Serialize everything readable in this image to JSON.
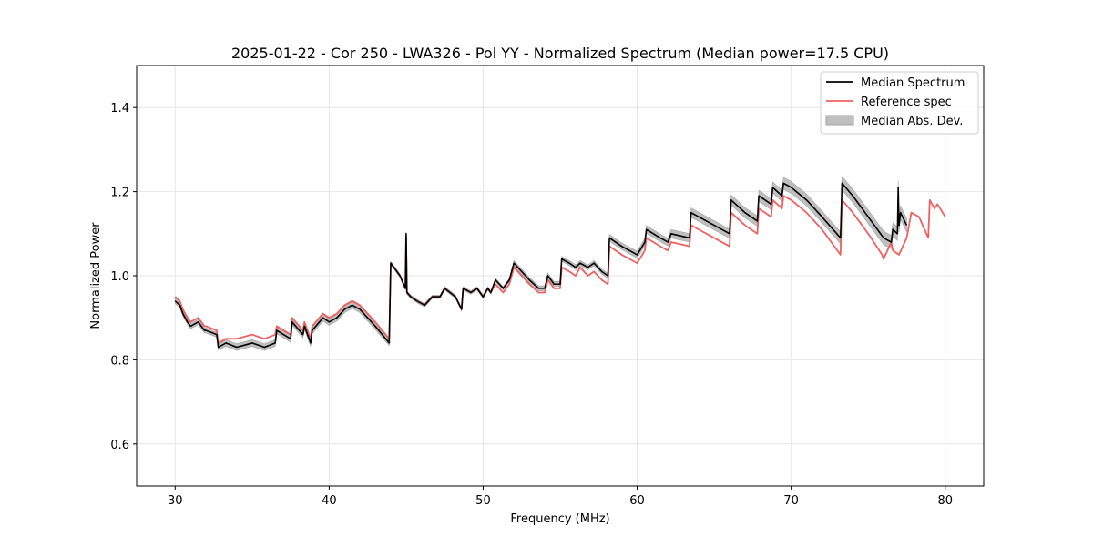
{
  "chart_data": {
    "type": "line",
    "title": "2025-01-22 - Cor 250 - LWA326 - Pol YY - Normalized Spectrum (Median power=17.5 CPU)",
    "xlabel": "Frequency (MHz)",
    "ylabel": "Normalized Power",
    "xlim": [
      27.5,
      82.5
    ],
    "ylim": [
      0.5,
      1.5
    ],
    "xticks": [
      30,
      40,
      50,
      60,
      70,
      80
    ],
    "yticks": [
      0.6,
      0.8,
      1.0,
      1.2,
      1.4
    ],
    "xtick_labels": [
      "30",
      "40",
      "50",
      "60",
      "70",
      "80"
    ],
    "ytick_labels": [
      "0.6",
      "0.8",
      "1.0",
      "1.2",
      "1.4"
    ],
    "grid": true,
    "legend_position": "top-right",
    "colors": {
      "median": "#000000",
      "reference": "#f06060",
      "mad_fill": "#bfbfbf",
      "mad_edge": "#a0a0a0",
      "grid": "#e6e6e6"
    },
    "series": [
      {
        "name": "Median Spectrum",
        "x": [
          30.0,
          30.3,
          30.5,
          30.8,
          31.0,
          31.5,
          31.9,
          32.0,
          32.7,
          32.8,
          33.3,
          34.0,
          35.0,
          35.8,
          36.5,
          36.6,
          37.5,
          37.6,
          38.3,
          38.4,
          38.8,
          38.9,
          39.6,
          40.0,
          40.5,
          41.0,
          41.5,
          42.0,
          42.5,
          43.0,
          43.9,
          44.0,
          44.6,
          44.95,
          45.0,
          45.05,
          45.3,
          45.7,
          46.2,
          46.7,
          47.2,
          47.5,
          48.2,
          48.6,
          48.7,
          49.2,
          49.6,
          50.0,
          50.3,
          50.5,
          50.8,
          51.3,
          51.7,
          52.0,
          52.5,
          53.0,
          53.6,
          54.0,
          54.2,
          54.6,
          55.0,
          55.1,
          55.6,
          56.0,
          56.3,
          56.8,
          57.2,
          57.7,
          58.1,
          58.2,
          59.0,
          59.5,
          60.0,
          60.5,
          60.6,
          61.5,
          62.0,
          62.2,
          63.4,
          63.5,
          64.5,
          65.0,
          66.0,
          66.1,
          67.0,
          67.8,
          67.9,
          68.7,
          68.8,
          69.4,
          69.5,
          70.0,
          71.0,
          72.0,
          73.2,
          73.3,
          74.0,
          75.0,
          76.0,
          76.5,
          76.6,
          76.9,
          76.95,
          77.0,
          77.1,
          77.5
        ],
        "y": [
          0.94,
          0.93,
          0.91,
          0.89,
          0.88,
          0.89,
          0.87,
          0.87,
          0.86,
          0.83,
          0.84,
          0.83,
          0.84,
          0.83,
          0.84,
          0.87,
          0.85,
          0.89,
          0.86,
          0.88,
          0.84,
          0.87,
          0.9,
          0.89,
          0.9,
          0.92,
          0.93,
          0.92,
          0.9,
          0.88,
          0.84,
          1.03,
          1.0,
          0.97,
          1.1,
          0.96,
          0.95,
          0.94,
          0.93,
          0.95,
          0.95,
          0.97,
          0.95,
          0.92,
          0.97,
          0.96,
          0.97,
          0.95,
          0.97,
          0.96,
          0.99,
          0.97,
          0.99,
          1.03,
          1.01,
          0.99,
          0.97,
          0.97,
          1.0,
          0.98,
          0.98,
          1.04,
          1.03,
          1.02,
          1.03,
          1.02,
          1.03,
          1.01,
          1.0,
          1.09,
          1.07,
          1.06,
          1.05,
          1.08,
          1.11,
          1.09,
          1.08,
          1.1,
          1.09,
          1.15,
          1.13,
          1.12,
          1.1,
          1.18,
          1.15,
          1.13,
          1.19,
          1.17,
          1.21,
          1.19,
          1.22,
          1.21,
          1.18,
          1.14,
          1.09,
          1.22,
          1.19,
          1.14,
          1.09,
          1.08,
          1.11,
          1.1,
          1.21,
          1.12,
          1.15,
          1.12
        ]
      },
      {
        "name": "Reference spec",
        "x": [
          30.0,
          30.3,
          30.5,
          30.8,
          31.0,
          31.5,
          31.9,
          32.0,
          32.7,
          32.8,
          33.3,
          34.0,
          35.0,
          35.8,
          36.5,
          36.6,
          37.5,
          37.6,
          38.3,
          38.4,
          38.8,
          38.9,
          39.6,
          40.0,
          40.5,
          41.0,
          41.5,
          42.0,
          42.5,
          43.0,
          43.9,
          44.0,
          44.6,
          44.95,
          45.0,
          45.05,
          45.3,
          45.7,
          46.2,
          46.7,
          47.2,
          47.5,
          48.2,
          48.6,
          48.7,
          49.2,
          49.6,
          50.0,
          50.3,
          50.5,
          50.8,
          51.3,
          51.7,
          52.0,
          52.5,
          53.0,
          53.6,
          54.0,
          54.2,
          54.6,
          55.0,
          55.1,
          55.6,
          56.0,
          56.3,
          56.8,
          57.2,
          57.7,
          58.1,
          58.2,
          59.0,
          59.5,
          60.0,
          60.5,
          60.6,
          61.5,
          62.0,
          62.2,
          63.4,
          63.5,
          64.5,
          65.0,
          66.0,
          66.1,
          67.0,
          67.8,
          67.9,
          68.7,
          68.8,
          69.4,
          69.5,
          70.0,
          71.0,
          72.0,
          73.2,
          73.3,
          74.0,
          75.0,
          75.9,
          76.0,
          76.5,
          76.6,
          77.0,
          77.5,
          77.8,
          78.3,
          78.9,
          79.0,
          79.3,
          79.5,
          80.0
        ],
        "y": [
          0.95,
          0.94,
          0.92,
          0.9,
          0.89,
          0.9,
          0.88,
          0.88,
          0.87,
          0.84,
          0.85,
          0.85,
          0.86,
          0.85,
          0.86,
          0.88,
          0.86,
          0.9,
          0.87,
          0.89,
          0.85,
          0.88,
          0.91,
          0.9,
          0.91,
          0.93,
          0.94,
          0.93,
          0.91,
          0.89,
          0.85,
          1.03,
          1.0,
          0.97,
          1.09,
          0.96,
          0.95,
          0.94,
          0.93,
          0.95,
          0.95,
          0.97,
          0.95,
          0.92,
          0.97,
          0.96,
          0.97,
          0.95,
          0.97,
          0.96,
          0.98,
          0.96,
          0.98,
          1.02,
          1.0,
          0.98,
          0.96,
          0.96,
          0.99,
          0.97,
          0.97,
          1.02,
          1.01,
          1.0,
          1.02,
          1.0,
          1.01,
          0.99,
          0.98,
          1.07,
          1.05,
          1.04,
          1.03,
          1.06,
          1.09,
          1.07,
          1.06,
          1.08,
          1.07,
          1.12,
          1.1,
          1.09,
          1.07,
          1.15,
          1.12,
          1.1,
          1.16,
          1.14,
          1.18,
          1.16,
          1.19,
          1.18,
          1.15,
          1.11,
          1.05,
          1.18,
          1.15,
          1.1,
          1.05,
          1.04,
          1.08,
          1.06,
          1.05,
          1.09,
          1.15,
          1.14,
          1.09,
          1.18,
          1.16,
          1.17,
          1.14
        ]
      }
    ],
    "band": {
      "name": "Median Abs. Dev.",
      "halfwidth": [
        0.006,
        0.006,
        0.006,
        0.006,
        0.006,
        0.006,
        0.006,
        0.006,
        0.006,
        0.006,
        0.008,
        0.008,
        0.008,
        0.008,
        0.008,
        0.008,
        0.008,
        0.008,
        0.008,
        0.008,
        0.008,
        0.008,
        0.008,
        0.008,
        0.008,
        0.008,
        0.008,
        0.008,
        0.008,
        0.008,
        0.006,
        0.004,
        0.004,
        0.004,
        0.004,
        0.004,
        0.004,
        0.004,
        0.004,
        0.004,
        0.004,
        0.004,
        0.004,
        0.004,
        0.004,
        0.004,
        0.004,
        0.004,
        0.004,
        0.004,
        0.004,
        0.004,
        0.004,
        0.006,
        0.006,
        0.006,
        0.006,
        0.006,
        0.006,
        0.006,
        0.006,
        0.006,
        0.006,
        0.006,
        0.006,
        0.006,
        0.006,
        0.006,
        0.006,
        0.008,
        0.008,
        0.008,
        0.008,
        0.009,
        0.009,
        0.009,
        0.009,
        0.01,
        0.01,
        0.011,
        0.011,
        0.011,
        0.011,
        0.012,
        0.012,
        0.012,
        0.013,
        0.013,
        0.013,
        0.013,
        0.014,
        0.014,
        0.014,
        0.014,
        0.014,
        0.016,
        0.016,
        0.016,
        0.016,
        0.016,
        0.016,
        0.016,
        0.016,
        0.016,
        0.016,
        0.016
      ]
    },
    "legend": [
      {
        "label": "Median Spectrum",
        "kind": "line",
        "color": "#000000"
      },
      {
        "label": "Reference spec",
        "kind": "line",
        "color": "#f06060"
      },
      {
        "label": "Median Abs. Dev.",
        "kind": "patch",
        "color": "#bfbfbf"
      }
    ]
  }
}
